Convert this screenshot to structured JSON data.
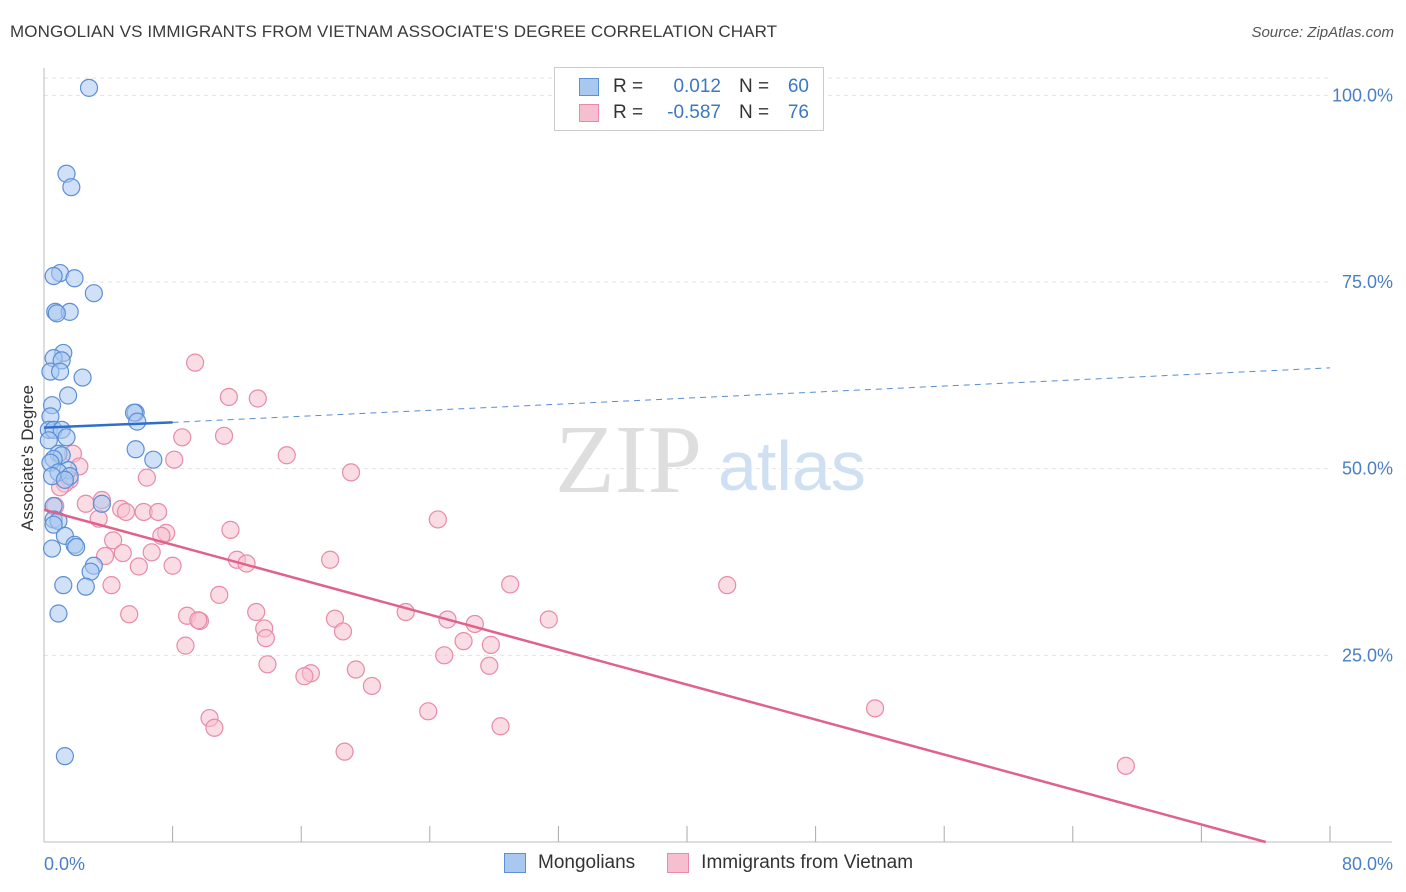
{
  "header": {
    "title": "MONGOLIAN VS IMMIGRANTS FROM VIETNAM ASSOCIATE'S DEGREE CORRELATION CHART",
    "source": "Source: ZipAtlas.com"
  },
  "watermark": {
    "zip": "ZIP",
    "atlas": "atlas"
  },
  "legend": {
    "rows": [
      {
        "r_label": "R =",
        "r_value": "0.012",
        "n_label": "N =",
        "n_value": "60"
      },
      {
        "r_label": "R =",
        "r_value": "-0.587",
        "n_label": "N =",
        "n_value": "76"
      }
    ]
  },
  "bottom_legend": {
    "series_a": "Mongolians",
    "series_b": "Immigrants from Vietnam"
  },
  "colors": {
    "series_a_fill": "#a9c8f0",
    "series_a_stroke": "#5b8fd6",
    "series_a_line": "#2f6fcc",
    "series_b_fill": "#f5bfd0",
    "series_b_stroke": "#e88aa8",
    "series_b_line": "#e0628c",
    "axis_text": "#4a7fc8",
    "grid": "#e3e3e3"
  },
  "chart_data": {
    "type": "scatter",
    "title": "MONGOLIAN VS IMMIGRANTS FROM VIETNAM ASSOCIATE'S DEGREE CORRELATION CHART",
    "xlabel": "",
    "ylabel": "Associate's Degree",
    "xlim": [
      0,
      80
    ],
    "ylim": [
      0,
      105
    ],
    "x_tick_labels": [
      "0.0%",
      "80.0%"
    ],
    "y_ticks": [
      25,
      50,
      75,
      100
    ],
    "y_tick_labels": [
      "25.0%",
      "50.0%",
      "75.0%",
      "100.0%"
    ],
    "grid": true,
    "series": [
      {
        "name": "Mongolians",
        "r": 0.012,
        "n": 60,
        "trend": {
          "x0": 0,
          "y0": 55.5,
          "x1": 8,
          "y1": 56.2,
          "dashed_to_x": 80,
          "dashed_to_y": 63.5
        },
        "points": [
          [
            2.8,
            101
          ],
          [
            1.4,
            89.5
          ],
          [
            1.7,
            87.7
          ],
          [
            1.0,
            76.2
          ],
          [
            0.6,
            75.8
          ],
          [
            1.9,
            75.5
          ],
          [
            3.1,
            73.5
          ],
          [
            0.7,
            71.0
          ],
          [
            1.6,
            71.0
          ],
          [
            0.8,
            70.8
          ],
          [
            1.2,
            65.5
          ],
          [
            0.6,
            64.8
          ],
          [
            1.1,
            64.5
          ],
          [
            0.4,
            63.0
          ],
          [
            1.0,
            63.0
          ],
          [
            2.4,
            62.2
          ],
          [
            1.5,
            59.8
          ],
          [
            0.5,
            58.5
          ],
          [
            0.4,
            57.0
          ],
          [
            5.7,
            57.5
          ],
          [
            5.6,
            57.5
          ],
          [
            5.8,
            56.3
          ],
          [
            0.3,
            55.2
          ],
          [
            0.6,
            55.2
          ],
          [
            1.1,
            55.2
          ],
          [
            1.4,
            54.2
          ],
          [
            0.3,
            53.8
          ],
          [
            5.7,
            52.6
          ],
          [
            0.9,
            52.0
          ],
          [
            1.1,
            51.8
          ],
          [
            0.6,
            51.3
          ],
          [
            0.4,
            50.8
          ],
          [
            6.8,
            51.2
          ],
          [
            1.5,
            49.8
          ],
          [
            0.9,
            49.5
          ],
          [
            0.5,
            49.0
          ],
          [
            1.6,
            49.0
          ],
          [
            1.3,
            48.5
          ],
          [
            3.6,
            45.3
          ],
          [
            0.6,
            45.0
          ],
          [
            0.6,
            43.2
          ],
          [
            0.9,
            43.0
          ],
          [
            0.6,
            42.5
          ],
          [
            1.3,
            41.0
          ],
          [
            1.9,
            39.8
          ],
          [
            2.0,
            39.5
          ],
          [
            0.5,
            39.3
          ],
          [
            3.1,
            37.0
          ],
          [
            2.9,
            36.2
          ],
          [
            1.2,
            34.4
          ],
          [
            2.6,
            34.2
          ],
          [
            0.9,
            30.6
          ],
          [
            1.3,
            11.5
          ]
        ]
      },
      {
        "name": "Immigrants from Vietnam",
        "r": -0.587,
        "n": 76,
        "trend": {
          "x0": 0,
          "y0": 44.5,
          "x1": 76,
          "y1": 0
        },
        "points": [
          [
            9.4,
            64.2
          ],
          [
            11.5,
            59.6
          ],
          [
            13.3,
            59.4
          ],
          [
            8.6,
            54.2
          ],
          [
            11.2,
            54.4
          ],
          [
            15.1,
            51.8
          ],
          [
            8.1,
            51.2
          ],
          [
            19.1,
            49.5
          ],
          [
            1.8,
            52.0
          ],
          [
            2.2,
            50.3
          ],
          [
            6.4,
            48.8
          ],
          [
            1.6,
            48.5
          ],
          [
            1.3,
            48.0
          ],
          [
            1.0,
            47.5
          ],
          [
            0.7,
            45.0
          ],
          [
            2.6,
            45.3
          ],
          [
            3.6,
            45.8
          ],
          [
            4.8,
            44.6
          ],
          [
            5.1,
            44.2
          ],
          [
            6.2,
            44.2
          ],
          [
            7.1,
            44.2
          ],
          [
            3.4,
            43.3
          ],
          [
            24.5,
            43.2
          ],
          [
            11.6,
            41.8
          ],
          [
            7.6,
            41.4
          ],
          [
            7.3,
            41.0
          ],
          [
            4.3,
            40.4
          ],
          [
            4.9,
            38.7
          ],
          [
            6.7,
            38.8
          ],
          [
            3.8,
            38.3
          ],
          [
            12.0,
            37.8
          ],
          [
            12.6,
            37.3
          ],
          [
            8.0,
            37.0
          ],
          [
            17.8,
            37.8
          ],
          [
            5.9,
            36.9
          ],
          [
            4.2,
            34.4
          ],
          [
            29.0,
            34.5
          ],
          [
            42.5,
            34.4
          ],
          [
            10.9,
            33.1
          ],
          [
            5.3,
            30.5
          ],
          [
            8.9,
            30.3
          ],
          [
            9.7,
            29.6
          ],
          [
            9.6,
            29.7
          ],
          [
            13.2,
            30.8
          ],
          [
            22.5,
            30.8
          ],
          [
            18.1,
            29.9
          ],
          [
            25.1,
            29.8
          ],
          [
            26.8,
            29.2
          ],
          [
            31.4,
            29.8
          ],
          [
            13.7,
            28.6
          ],
          [
            18.6,
            28.2
          ],
          [
            13.8,
            27.3
          ],
          [
            26.1,
            26.9
          ],
          [
            27.8,
            26.4
          ],
          [
            8.8,
            26.3
          ],
          [
            24.9,
            25.0
          ],
          [
            13.9,
            23.8
          ],
          [
            27.7,
            23.6
          ],
          [
            19.4,
            23.1
          ],
          [
            16.6,
            22.6
          ],
          [
            16.2,
            22.2
          ],
          [
            20.4,
            20.9
          ],
          [
            23.9,
            17.5
          ],
          [
            51.7,
            17.9
          ],
          [
            10.3,
            16.6
          ],
          [
            10.6,
            15.3
          ],
          [
            28.4,
            15.5
          ],
          [
            18.7,
            12.1
          ],
          [
            67.3,
            10.2
          ]
        ]
      }
    ]
  }
}
